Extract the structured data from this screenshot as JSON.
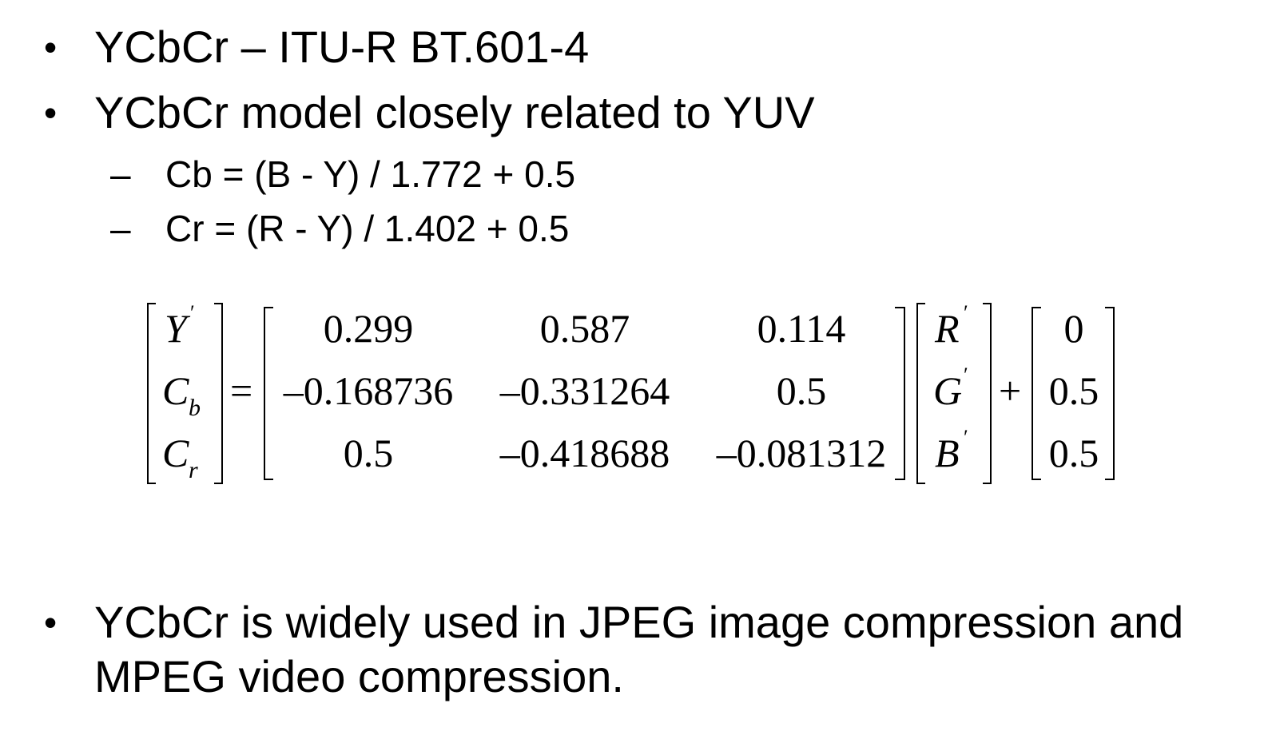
{
  "bullets": [
    {
      "symbol": "•",
      "text": "YCbCr – ITU-R BT.601-4"
    },
    {
      "symbol": "•",
      "text": "YCbCr  model closely related to YUV"
    }
  ],
  "sub_bullets": [
    {
      "symbol": "–",
      "text": "Cb = (B - Y) / 1.772 + 0.5"
    },
    {
      "symbol": "–",
      "text": "Cr = (R - Y) / 1.402 + 0.5"
    }
  ],
  "equation": {
    "lhs": {
      "y": "Y",
      "y_prime": "′",
      "cb": "C",
      "cb_sub": "b",
      "cr": "C",
      "cr_sub": "r"
    },
    "equals": "=",
    "matrix": [
      [
        "0.299",
        "0.587",
        "0.114"
      ],
      [
        "–0.168736",
        "–0.331264",
        "0.5"
      ],
      [
        "0.5",
        "–0.418688",
        "–0.081312"
      ]
    ],
    "rgb": {
      "r": "R",
      "g": "G",
      "b": "B",
      "prime": "′"
    },
    "plus": "+",
    "offset": [
      "0",
      "0.5",
      "0.5"
    ]
  },
  "final_bullet": {
    "symbol": "•",
    "line1": "YCbCr  is widely used in JPEG image compression and",
    "line2": "MPEG video compression."
  }
}
